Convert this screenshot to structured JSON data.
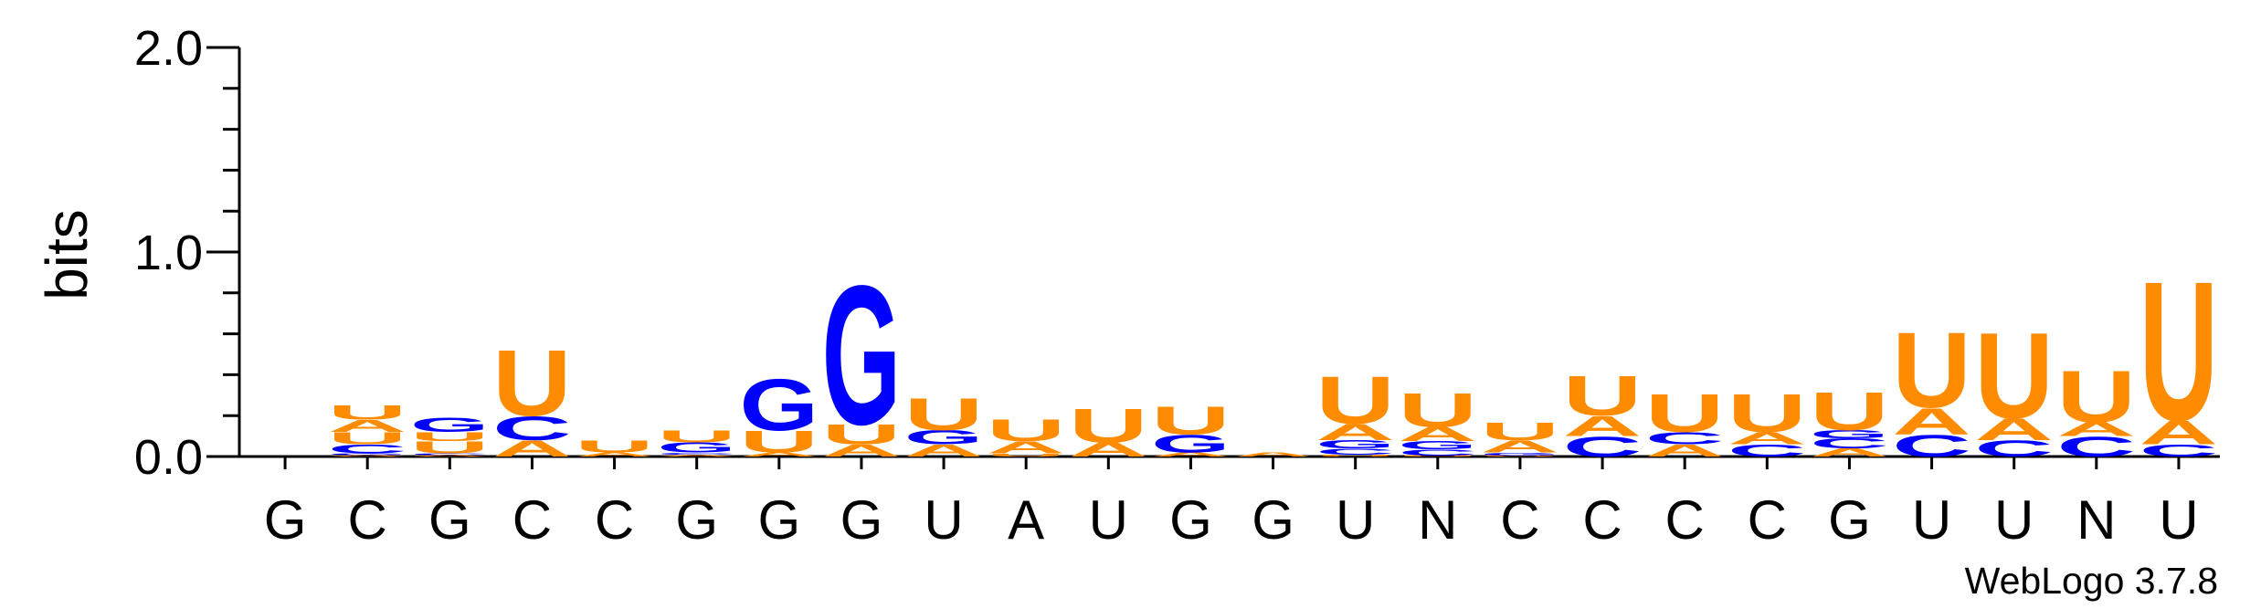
{
  "chart_data": {
    "type": "sequence-logo",
    "ylabel": "bits",
    "ylim": [
      0,
      2.0
    ],
    "yticks_major": [
      {
        "value": 0.0,
        "label": "0.0"
      },
      {
        "value": 1.0,
        "label": "1.0"
      },
      {
        "value": 2.0,
        "label": "2.0"
      }
    ],
    "yticks_minor": [
      0.2,
      0.4,
      0.6,
      0.8,
      1.2,
      1.4,
      1.6,
      1.8
    ],
    "xtick_labels": [
      "G",
      "C",
      "G",
      "C",
      "C",
      "G",
      "G",
      "G",
      "U",
      "A",
      "U",
      "G",
      "G",
      "U",
      "N",
      "C",
      "C",
      "C",
      "C",
      "G",
      "U",
      "U",
      "N",
      "U"
    ],
    "credit": "WebLogo 3.7.8",
    "colors": {
      "U": "#ff8c00",
      "A": "#ff8c00",
      "C": "#0000ff",
      "G": "#0000ff"
    },
    "positions": [
      {
        "stack": []
      },
      {
        "stack": [
          {
            "l": "A",
            "h": 0.0075
          },
          {
            "l": "G",
            "h": 0.0075
          },
          {
            "l": "C",
            "h": 0.045
          },
          {
            "l": "U",
            "h": 0.06
          },
          {
            "l": "A",
            "h": 0.06
          },
          {
            "l": "U",
            "h": 0.07
          }
        ]
      },
      {
        "stack": [
          {
            "l": "A",
            "h": 0.0075
          },
          {
            "l": "C",
            "h": 0.0075
          },
          {
            "l": "U",
            "h": 0.06
          },
          {
            "l": "U",
            "h": 0.045
          },
          {
            "l": "G",
            "h": 0.07
          }
        ]
      },
      {
        "stack": [
          {
            "l": "A",
            "h": 0.08
          },
          {
            "l": "C",
            "h": 0.12
          },
          {
            "l": "U",
            "h": 0.33
          }
        ]
      },
      {
        "stack": [
          {
            "l": "A",
            "h": 0.02
          },
          {
            "l": "U",
            "h": 0.06
          }
        ]
      },
      {
        "stack": [
          {
            "l": "A",
            "h": 0.01
          },
          {
            "l": "C",
            "h": 0.01
          },
          {
            "l": "G",
            "h": 0.05
          },
          {
            "l": "U",
            "h": 0.06
          }
        ]
      },
      {
        "stack": [
          {
            "l": "A",
            "h": 0.02
          },
          {
            "l": "U",
            "h": 0.11
          },
          {
            "l": "G",
            "h": 0.26
          }
        ]
      },
      {
        "stack": [
          {
            "l": "A",
            "h": 0.06
          },
          {
            "l": "U",
            "h": 0.1
          },
          {
            "l": "G",
            "h": 0.7
          }
        ]
      },
      {
        "stack": [
          {
            "l": "A",
            "h": 0.06
          },
          {
            "l": "G",
            "h": 0.07
          },
          {
            "l": "U",
            "h": 0.16
          }
        ]
      },
      {
        "stack": [
          {
            "l": "U",
            "h": 0.015
          },
          {
            "l": "A",
            "h": 0.06
          },
          {
            "l": "U",
            "h": 0.11
          }
        ]
      },
      {
        "stack": [
          {
            "l": "A",
            "h": 0.07
          },
          {
            "l": "U",
            "h": 0.17
          }
        ]
      },
      {
        "stack": [
          {
            "l": "A",
            "h": 0.02
          },
          {
            "l": "G",
            "h": 0.09
          },
          {
            "l": "U",
            "h": 0.14
          }
        ]
      },
      {
        "stack": [
          {
            "l": "A",
            "h": 0.02
          }
        ]
      },
      {
        "stack": [
          {
            "l": "U",
            "h": 0.01
          },
          {
            "l": "C",
            "h": 0.03
          },
          {
            "l": "G",
            "h": 0.04
          },
          {
            "l": "A",
            "h": 0.08
          },
          {
            "l": "U",
            "h": 0.24
          }
        ]
      },
      {
        "stack": [
          {
            "l": "U",
            "h": 0.005
          },
          {
            "l": "C",
            "h": 0.03
          },
          {
            "l": "G",
            "h": 0.04
          },
          {
            "l": "A",
            "h": 0.07
          },
          {
            "l": "U",
            "h": 0.17
          }
        ]
      },
      {
        "stack": [
          {
            "l": "U",
            "h": 0.005
          },
          {
            "l": "G",
            "h": 0.015
          },
          {
            "l": "A",
            "h": 0.06
          },
          {
            "l": "U",
            "h": 0.09
          }
        ]
      },
      {
        "stack": [
          {
            "l": "C",
            "h": 0.1
          },
          {
            "l": "A",
            "h": 0.1
          },
          {
            "l": "U",
            "h": 0.2
          }
        ]
      },
      {
        "stack": [
          {
            "l": "A",
            "h": 0.06
          },
          {
            "l": "C",
            "h": 0.06
          },
          {
            "l": "U",
            "h": 0.19
          }
        ]
      },
      {
        "stack": [
          {
            "l": "C",
            "h": 0.06
          },
          {
            "l": "A",
            "h": 0.06
          },
          {
            "l": "U",
            "h": 0.19
          }
        ]
      },
      {
        "stack": [
          {
            "l": "A",
            "h": 0.04
          },
          {
            "l": "C",
            "h": 0.05
          },
          {
            "l": "G",
            "h": 0.04
          },
          {
            "l": "U",
            "h": 0.19
          }
        ]
      },
      {
        "stack": [
          {
            "l": "C",
            "h": 0.11
          },
          {
            "l": "A",
            "h": 0.13
          },
          {
            "l": "U",
            "h": 0.38
          }
        ]
      },
      {
        "stack": [
          {
            "l": "C",
            "h": 0.08
          },
          {
            "l": "A",
            "h": 0.11
          },
          {
            "l": "U",
            "h": 0.43
          }
        ]
      },
      {
        "stack": [
          {
            "l": "C",
            "h": 0.1
          },
          {
            "l": "A",
            "h": 0.07
          },
          {
            "l": "U",
            "h": 0.26
          }
        ]
      },
      {
        "stack": [
          {
            "l": "C",
            "h": 0.06
          },
          {
            "l": "A",
            "h": 0.12
          },
          {
            "l": "U",
            "h": 0.7
          }
        ]
      }
    ]
  }
}
